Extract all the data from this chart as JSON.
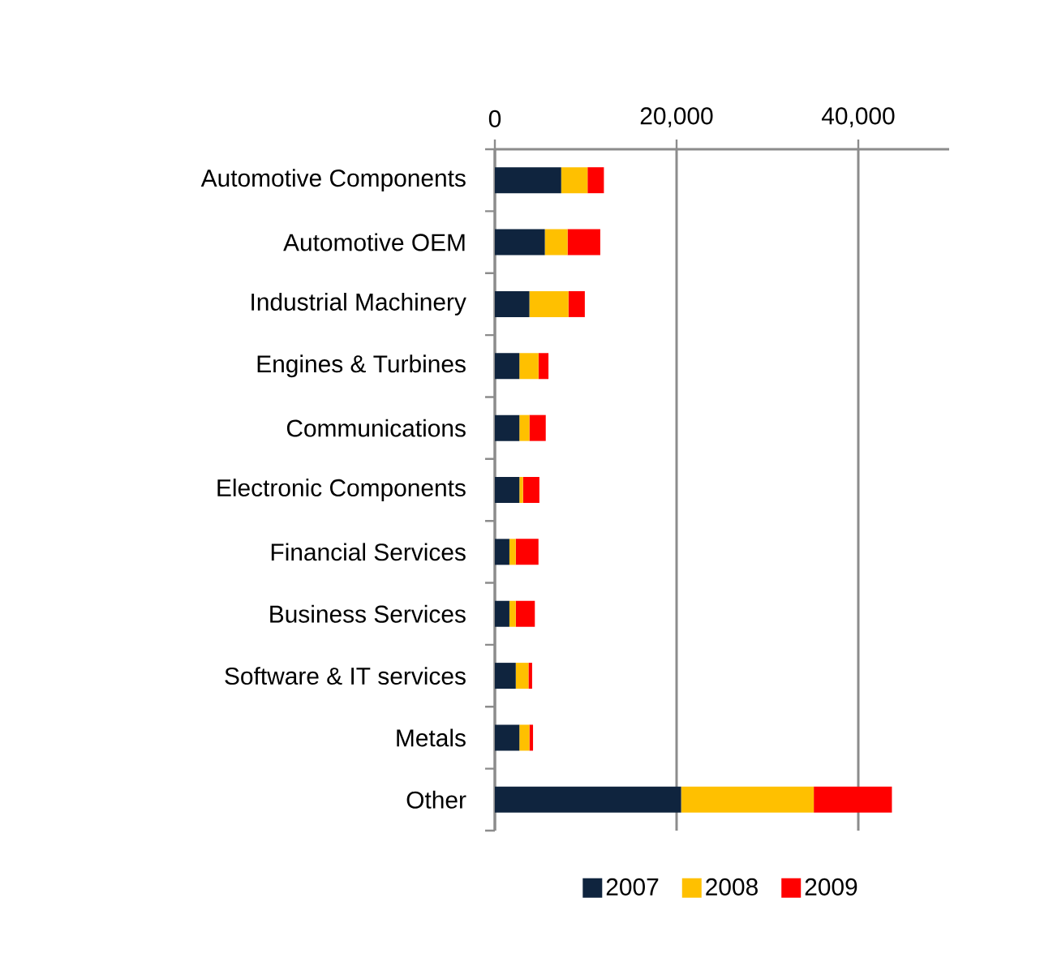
{
  "chart_data": {
    "type": "bar",
    "orientation": "horizontal",
    "stacked": true,
    "categories": [
      "Automotive Components",
      "Automotive OEM",
      "Industrial Machinery",
      "Engines & Turbines",
      "Communications",
      "Electronic Components",
      "Financial Services",
      "Business Services",
      "Software & IT services",
      "Metals",
      "Other"
    ],
    "series": [
      {
        "name": "2007",
        "color": "#0f243e",
        "values": [
          7300,
          5500,
          3800,
          2700,
          2700,
          2700,
          1600,
          1600,
          2300,
          2700,
          20500
        ]
      },
      {
        "name": "2008",
        "color": "#ffc000",
        "values": [
          2900,
          2500,
          4300,
          2100,
          1100,
          400,
          700,
          700,
          1400,
          1100,
          14600
        ]
      },
      {
        "name": "2009",
        "color": "#ff0000",
        "values": [
          1800,
          3600,
          1800,
          1100,
          1800,
          1800,
          2500,
          2100,
          400,
          400,
          8600
        ]
      }
    ],
    "xlim": [
      0,
      50000
    ],
    "xticks": [
      {
        "value": 0,
        "label": "0"
      },
      {
        "value": 20000,
        "label": "20,000"
      },
      {
        "value": 40000,
        "label": "40,000"
      }
    ],
    "grid": "x",
    "legend": "bottom"
  }
}
